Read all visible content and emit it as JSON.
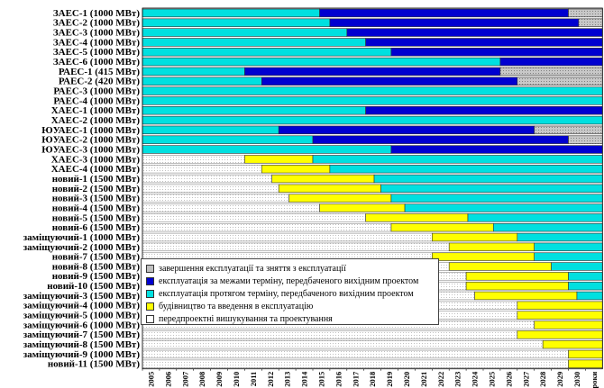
{
  "colors": {
    "decom": "#c0c0c0",
    "ext": "#0000d0",
    "op": "#00e0e0",
    "build": "#ffff00",
    "pre": "#ffffff"
  },
  "chart_data": {
    "type": "gantt",
    "x_unit": "year",
    "xlim": [
      2005,
      2032
    ],
    "year_ticks": [
      "2005",
      "2006",
      "2007",
      "2008",
      "2009",
      "2010",
      "2011",
      "2012",
      "2013",
      "2014",
      "2015",
      "2016",
      "2017",
      "2018",
      "2019",
      "2020",
      "2021",
      "2022",
      "2023",
      "2024",
      "2025",
      "2026",
      "2027",
      "2028",
      "2029",
      "2030",
      "роки"
    ],
    "legend": [
      {
        "key": "decom",
        "label": "завершення експлуатації та зняття з експлуатації"
      },
      {
        "key": "ext",
        "label": "експлуатація за межами терміну, передбаченого вихідним проектом"
      },
      {
        "key": "op",
        "label": "експлуатація протягом терміну, передбаченого вихідним проектом"
      },
      {
        "key": "build",
        "label": "будівництво та введення в експлуатацію"
      },
      {
        "key": "pre",
        "label": "передпроектні вишукування та проектування"
      }
    ],
    "rows": [
      {
        "label": "ЗАЕС-1 (1000 МВт)",
        "segments": [
          [
            "op",
            2005,
            2015.4
          ],
          [
            "ext",
            2015.4,
            2030
          ],
          [
            "decom",
            2030,
            2032
          ]
        ]
      },
      {
        "label": "ЗАЕС-2 (1000 МВт)",
        "segments": [
          [
            "op",
            2005,
            2016
          ],
          [
            "ext",
            2016,
            2030.6
          ],
          [
            "decom",
            2030.6,
            2032
          ]
        ]
      },
      {
        "label": "ЗАЕС-3 (1000 МВт)",
        "segments": [
          [
            "op",
            2005,
            2017
          ],
          [
            "ext",
            2017,
            2032
          ]
        ]
      },
      {
        "label": "ЗАЕС-4 (1000 МВт)",
        "segments": [
          [
            "op",
            2005,
            2018.1
          ],
          [
            "ext",
            2018.1,
            2032
          ]
        ]
      },
      {
        "label": "ЗАЕС-5 (1000 МВт)",
        "segments": [
          [
            "op",
            2005,
            2019.6
          ],
          [
            "ext",
            2019.6,
            2032
          ]
        ]
      },
      {
        "label": "ЗАЕС-6 (1000 МВт)",
        "segments": [
          [
            "op",
            2005,
            2026
          ],
          [
            "ext",
            2026,
            2032
          ]
        ]
      },
      {
        "label": "РАЕС-1 (415 МВт)",
        "segments": [
          [
            "op",
            2005,
            2011
          ],
          [
            "ext",
            2011,
            2026
          ],
          [
            "decom",
            2026,
            2032
          ]
        ]
      },
      {
        "label": "РАЕС-2 (420 МВт)",
        "segments": [
          [
            "op",
            2005,
            2012
          ],
          [
            "ext",
            2012,
            2027
          ],
          [
            "decom",
            2027,
            2032
          ]
        ]
      },
      {
        "label": "РАЕС-3 (1000 МВт)",
        "segments": [
          [
            "op",
            2005,
            2032
          ]
        ]
      },
      {
        "label": "РАЕС-4 (1000 МВт)",
        "segments": [
          [
            "op",
            2005,
            2032
          ]
        ]
      },
      {
        "label": "ХАЕС-1 (1000 МВт)",
        "segments": [
          [
            "op",
            2005,
            2018.1
          ],
          [
            "ext",
            2018.1,
            2032
          ]
        ]
      },
      {
        "label": "ХАЕС-2 (1000 МВт)",
        "segments": [
          [
            "op",
            2005,
            2032
          ]
        ]
      },
      {
        "label": "ЮУАЕС-1 (1000 МВт)",
        "segments": [
          [
            "op",
            2005,
            2013
          ],
          [
            "ext",
            2013,
            2028
          ],
          [
            "decom",
            2028,
            2032
          ]
        ]
      },
      {
        "label": "ЮУАЕС-2 (1000 МВт)",
        "segments": [
          [
            "op",
            2005,
            2015
          ],
          [
            "ext",
            2015,
            2030
          ],
          [
            "decom",
            2030,
            2032
          ]
        ]
      },
      {
        "label": "ЮУАЕС-3 (1000 МВт)",
        "segments": [
          [
            "op",
            2005,
            2019.6
          ],
          [
            "ext",
            2019.6,
            2032
          ]
        ]
      },
      {
        "label": "ХАЕС-3 (1000 МВт)",
        "segments": [
          [
            "pre",
            2005,
            2011
          ],
          [
            "build",
            2011,
            2015
          ],
          [
            "op",
            2015,
            2032
          ]
        ]
      },
      {
        "label": "ХАЕС-4 (1000 МВт)",
        "segments": [
          [
            "pre",
            2005,
            2012
          ],
          [
            "build",
            2012,
            2016
          ],
          [
            "op",
            2016,
            2032
          ]
        ]
      },
      {
        "label": "новий-1 (1500 МВт)",
        "segments": [
          [
            "pre",
            2005,
            2012.6
          ],
          [
            "build",
            2012.6,
            2018.6
          ],
          [
            "op",
            2018.6,
            2032
          ]
        ]
      },
      {
        "label": "новий-2 (1500 МВт)",
        "segments": [
          [
            "pre",
            2005,
            2013
          ],
          [
            "build",
            2013,
            2019
          ],
          [
            "op",
            2019,
            2032
          ]
        ]
      },
      {
        "label": "новий-3 (1500 МВт)",
        "segments": [
          [
            "pre",
            2005,
            2013.6
          ],
          [
            "build",
            2013.6,
            2019.6
          ],
          [
            "op",
            2019.6,
            2032
          ]
        ]
      },
      {
        "label": "новий-4 (1500 МВт)",
        "segments": [
          [
            "pre",
            2005,
            2015.4
          ],
          [
            "build",
            2015.4,
            2020.4
          ],
          [
            "op",
            2020.4,
            2032
          ]
        ]
      },
      {
        "label": "новий-5 (1500 МВт)",
        "segments": [
          [
            "pre",
            2005,
            2018.1
          ],
          [
            "build",
            2018.1,
            2024.1
          ],
          [
            "op",
            2024.1,
            2032
          ]
        ]
      },
      {
        "label": "новий-6 (1500 МВт)",
        "segments": [
          [
            "pre",
            2005,
            2019.6
          ],
          [
            "build",
            2019.6,
            2025.6
          ],
          [
            "op",
            2025.6,
            2032
          ]
        ]
      },
      {
        "label": "заміщуючий-1 (1000 МВт)",
        "segments": [
          [
            "pre",
            2005,
            2022
          ],
          [
            "build",
            2022,
            2027
          ],
          [
            "op",
            2027,
            2032
          ]
        ]
      },
      {
        "label": "заміщуючий-2 (1000 МВт)",
        "segments": [
          [
            "pre",
            2005,
            2023
          ],
          [
            "build",
            2023,
            2028
          ],
          [
            "op",
            2028,
            2032
          ]
        ]
      },
      {
        "label": "новий-7 (1500 МВт)",
        "segments": [
          [
            "pre",
            2005,
            2022
          ],
          [
            "build",
            2022,
            2028
          ],
          [
            "op",
            2028,
            2032
          ]
        ]
      },
      {
        "label": "новий-8 (1500 МВт)",
        "segments": [
          [
            "pre",
            2005,
            2023
          ],
          [
            "build",
            2023,
            2029
          ],
          [
            "op",
            2029,
            2032
          ]
        ]
      },
      {
        "label": "новий-9 (1500 МВт)",
        "segments": [
          [
            "pre",
            2005,
            2024
          ],
          [
            "build",
            2024,
            2030
          ],
          [
            "op",
            2030,
            2032
          ]
        ]
      },
      {
        "label": "новий-10 (1500 МВт)",
        "segments": [
          [
            "pre",
            2005,
            2024
          ],
          [
            "build",
            2024,
            2030
          ],
          [
            "op",
            2030,
            2032
          ]
        ]
      },
      {
        "label": "заміщуючий-3 (1500 МВт)",
        "segments": [
          [
            "pre",
            2005,
            2024.5
          ],
          [
            "build",
            2024.5,
            2030.5
          ],
          [
            "op",
            2030.5,
            2032
          ]
        ]
      },
      {
        "label": "заміщуючий-4 (1000 МВт)",
        "segments": [
          [
            "pre",
            2005,
            2027
          ],
          [
            "build",
            2027,
            2032
          ]
        ]
      },
      {
        "label": "заміщуючий-5 (1000 МВт)",
        "segments": [
          [
            "pre",
            2005,
            2027
          ],
          [
            "build",
            2027,
            2032
          ]
        ]
      },
      {
        "label": "заміщуючий-6 (1000 МВт)",
        "segments": [
          [
            "pre",
            2005,
            2028
          ],
          [
            "build",
            2028,
            2032
          ]
        ]
      },
      {
        "label": "заміщуючий-7 (1500 МВт)",
        "segments": [
          [
            "pre",
            2005,
            2027
          ],
          [
            "build",
            2027,
            2032
          ]
        ]
      },
      {
        "label": "заміщуючий-8 (1500 МВт)",
        "segments": [
          [
            "pre",
            2005,
            2028.5
          ],
          [
            "build",
            2028.5,
            2032
          ]
        ]
      },
      {
        "label": "заміщуючий-9 (1000 МВт)",
        "segments": [
          [
            "pre",
            2005,
            2030
          ],
          [
            "build",
            2030,
            2032
          ]
        ]
      },
      {
        "label": "новий-11 (1500 МВт)",
        "segments": [
          [
            "pre",
            2005,
            2030
          ],
          [
            "build",
            2030,
            2032
          ]
        ]
      }
    ]
  }
}
